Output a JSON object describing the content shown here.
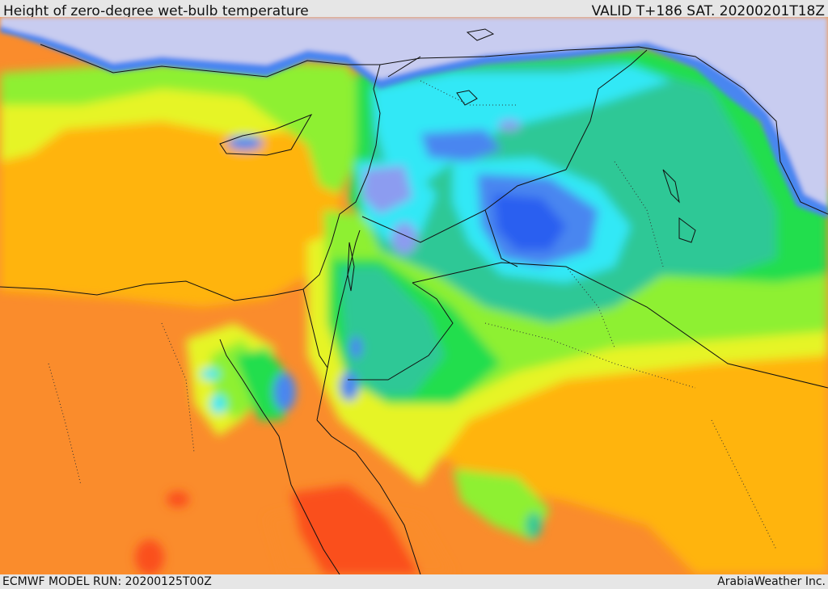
{
  "header": {
    "title": "Height of zero-degree wet-bulb temperature",
    "valid": "VALID T+186 SAT. 20200201T18Z"
  },
  "footer": {
    "model_run": "ECMWF MODEL RUN: 20200125T00Z",
    "credit": "ArabiaWeather Inc."
  },
  "colors": {
    "below_zero": "#c8ccf0",
    "dark_blue": "#2b5ff0",
    "blue": "#4a86f0",
    "light_blue": "#8c9cf0",
    "cyan": "#30e8f6",
    "teal": "#2ec896",
    "green": "#22de4e",
    "light_green": "#8ef032",
    "yellow_green": "#e6f428",
    "amber": "#ffb40c",
    "orange": "#fa8c2c",
    "red_orange": "#fa501c",
    "border": "#111111"
  }
}
